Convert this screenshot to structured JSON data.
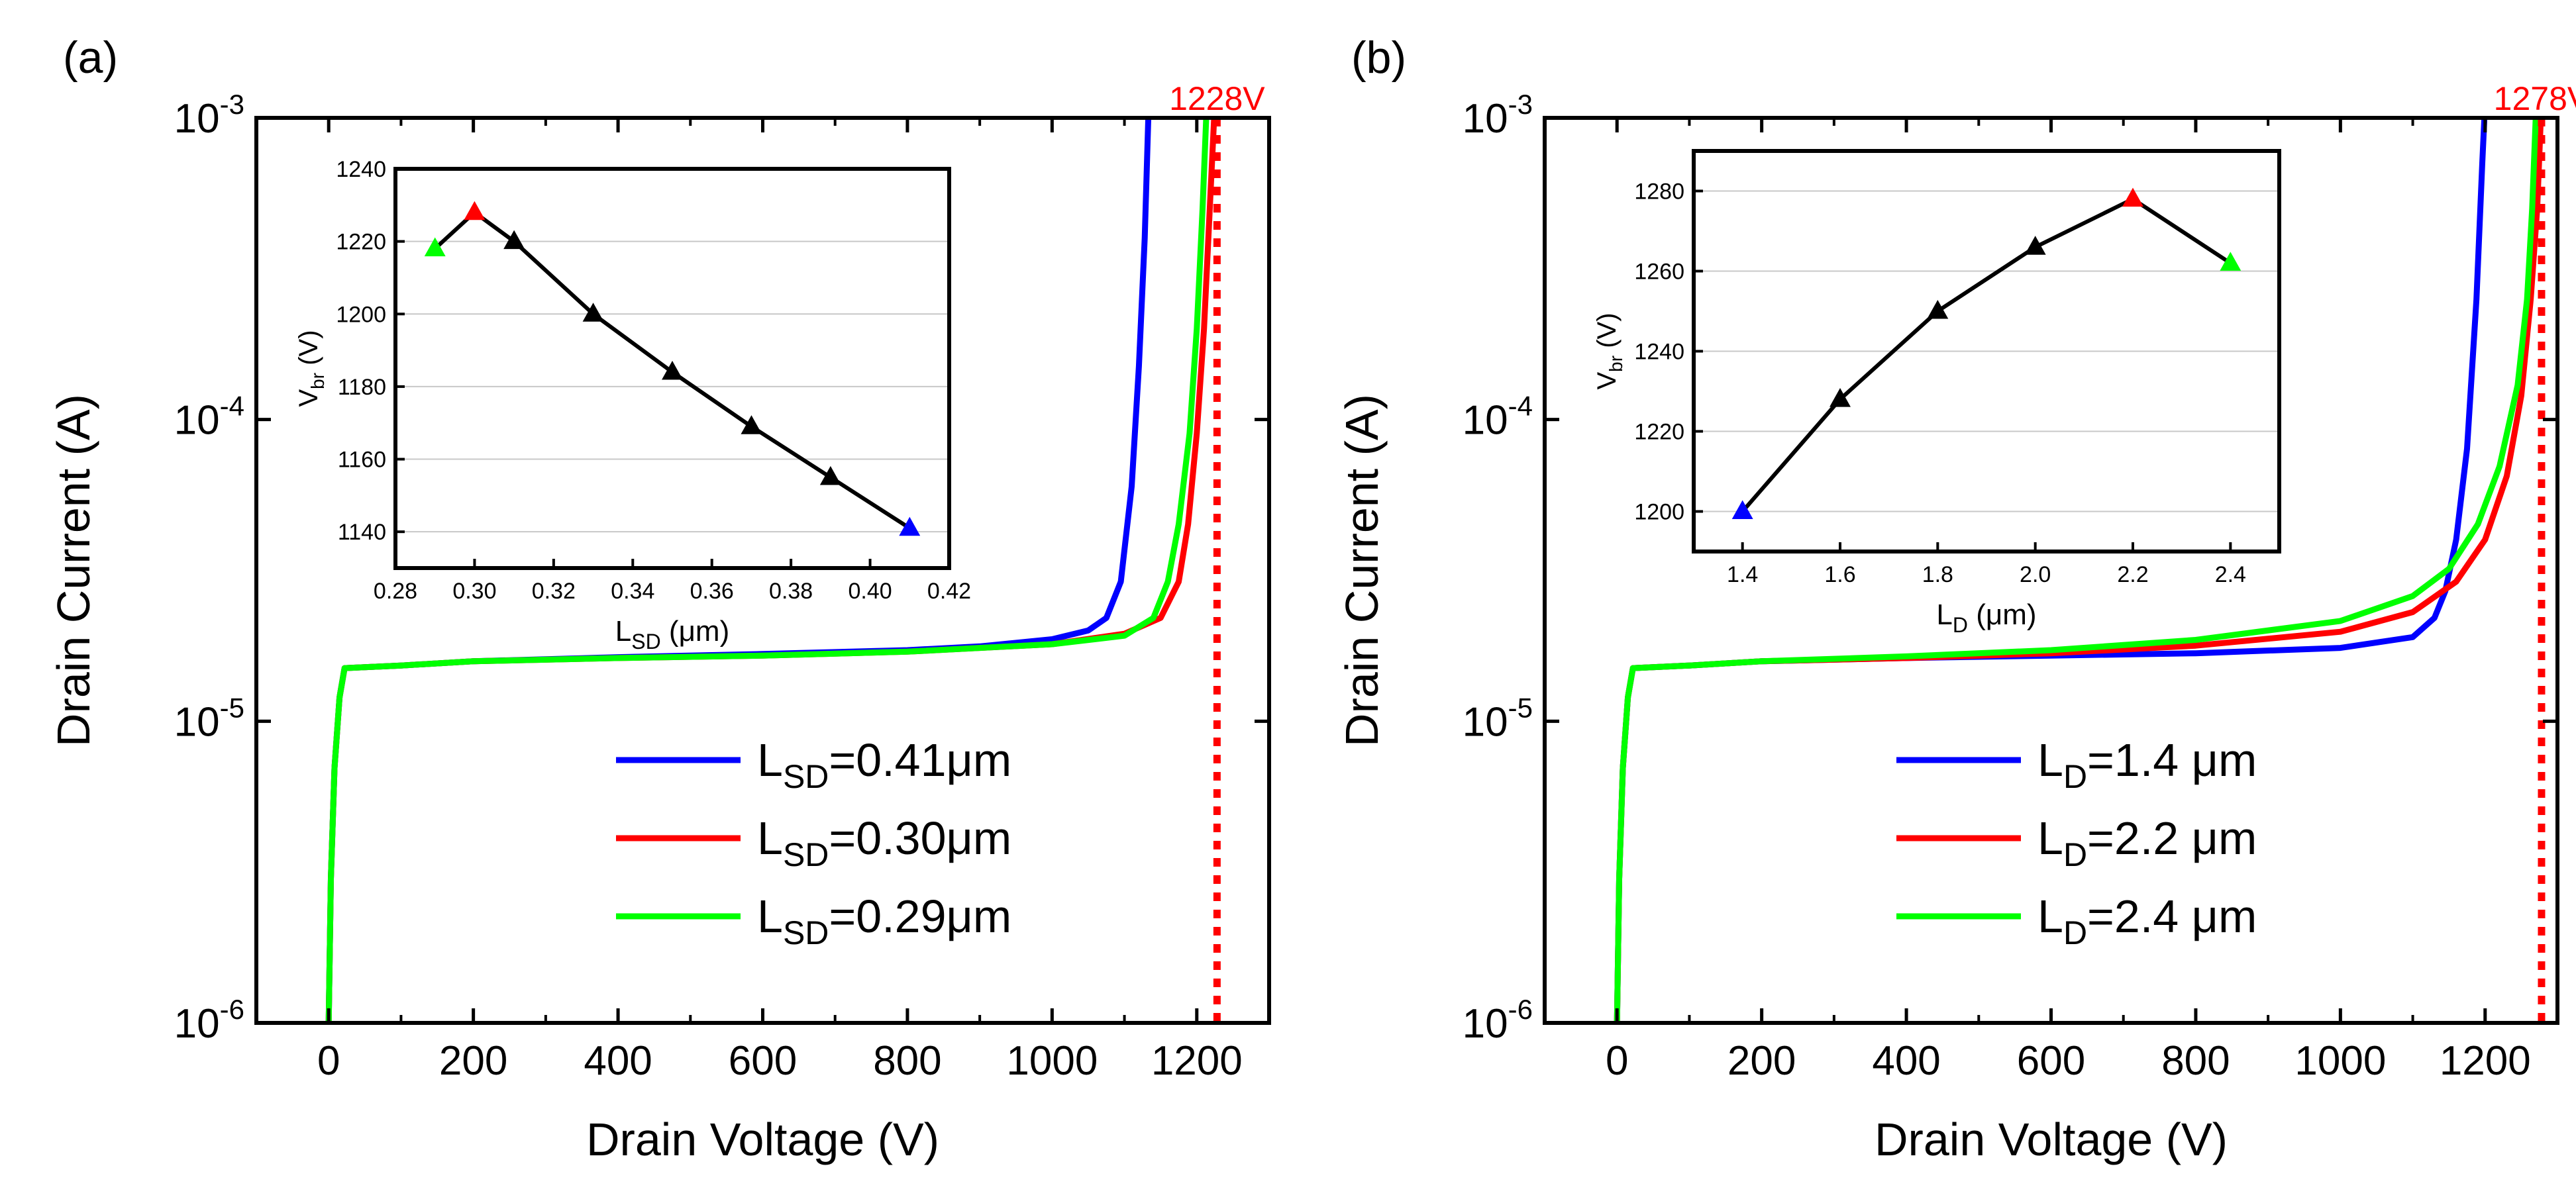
{
  "chart_data": [
    {
      "type": "line",
      "panel_label": "(a)",
      "xlabel": "Drain Voltage (V)",
      "ylabel": "Drain Current (A)",
      "y_scale": "log",
      "xlim": [
        -100,
        1300
      ],
      "ylim": [
        1e-06,
        0.001
      ],
      "x_ticks": [
        "0",
        "200",
        "400",
        "600",
        "800",
        "1000",
        "1200"
      ],
      "y_ticks": [
        {
          "base": "10",
          "exp": "-6"
        },
        {
          "base": "10",
          "exp": "-5"
        },
        {
          "base": "10",
          "exp": "-4"
        },
        {
          "base": "10",
          "exp": "-3"
        }
      ],
      "breakdown_line": {
        "x": 1228,
        "label": "1228V",
        "color": "#ff0000"
      },
      "legend": [
        {
          "main": "L",
          "sub": "SD",
          "rest": "=0.41μm",
          "color": "#0000ff"
        },
        {
          "main": "L",
          "sub": "SD",
          "rest": "=0.30μm",
          "color": "#ff0000"
        },
        {
          "main": "L",
          "sub": "SD",
          "rest": "=0.29μm",
          "color": "#00ff00"
        }
      ],
      "series": [
        {
          "color": "#0000ff",
          "points": [
            [
              0,
              1e-06
            ],
            [
              3,
              3e-06
            ],
            [
              8,
              7e-06
            ],
            [
              15,
              1.2e-05
            ],
            [
              22,
              1.5e-05
            ],
            [
              100,
              1.53e-05
            ],
            [
              200,
              1.58e-05
            ],
            [
              400,
              1.63e-05
            ],
            [
              600,
              1.67e-05
            ],
            [
              800,
              1.72e-05
            ],
            [
              900,
              1.77e-05
            ],
            [
              1000,
              1.87e-05
            ],
            [
              1050,
              2e-05
            ],
            [
              1075,
              2.2e-05
            ],
            [
              1095,
              2.9e-05
            ],
            [
              1110,
              6e-05
            ],
            [
              1120,
              0.00015
            ],
            [
              1128,
              0.0004
            ],
            [
              1133,
              0.001
            ]
          ]
        },
        {
          "color": "#ff0000",
          "points": [
            [
              0,
              1e-06
            ],
            [
              3,
              3e-06
            ],
            [
              8,
              7e-06
            ],
            [
              15,
              1.2e-05
            ],
            [
              22,
              1.5e-05
            ],
            [
              100,
              1.53e-05
            ],
            [
              200,
              1.58e-05
            ],
            [
              400,
              1.62e-05
            ],
            [
              600,
              1.65e-05
            ],
            [
              800,
              1.7e-05
            ],
            [
              1000,
              1.8e-05
            ],
            [
              1100,
              1.95e-05
            ],
            [
              1150,
              2.2e-05
            ],
            [
              1175,
              2.9e-05
            ],
            [
              1188,
              4.5e-05
            ],
            [
              1200,
              9e-05
            ],
            [
              1210,
              0.0002
            ],
            [
              1218,
              0.0005
            ],
            [
              1224,
              0.001
            ]
          ]
        },
        {
          "color": "#00ff00",
          "points": [
            [
              0,
              1e-06
            ],
            [
              3,
              3e-06
            ],
            [
              8,
              7e-06
            ],
            [
              15,
              1.2e-05
            ],
            [
              22,
              1.5e-05
            ],
            [
              100,
              1.53e-05
            ],
            [
              200,
              1.58e-05
            ],
            [
              400,
              1.62e-05
            ],
            [
              600,
              1.65e-05
            ],
            [
              800,
              1.7e-05
            ],
            [
              1000,
              1.8e-05
            ],
            [
              1100,
              1.92e-05
            ],
            [
              1140,
              2.2e-05
            ],
            [
              1160,
              2.9e-05
            ],
            [
              1175,
              4.5e-05
            ],
            [
              1190,
              9e-05
            ],
            [
              1200,
              0.0002
            ],
            [
              1208,
              0.0005
            ],
            [
              1213,
              0.001
            ]
          ]
        }
      ],
      "inset": {
        "xlabel": {
          "main": "L",
          "sub": "SD",
          "rest": " (μm)"
        },
        "ylabel": {
          "main": "V",
          "sub": "br",
          "rest": " (V)"
        },
        "xlim": [
          0.28,
          0.42
        ],
        "ylim": [
          1130,
          1240
        ],
        "x_ticks": [
          "0.28",
          "0.30",
          "0.32",
          "0.34",
          "0.36",
          "0.38",
          "0.40",
          "0.42"
        ],
        "y_ticks": [
          "1140",
          "1160",
          "1180",
          "1200",
          "1220",
          "1240"
        ],
        "points": [
          {
            "x": 0.29,
            "y": 1218,
            "color": "#00ff00"
          },
          {
            "x": 0.3,
            "y": 1228,
            "color": "#ff0000"
          },
          {
            "x": 0.31,
            "y": 1220,
            "color": "#000000"
          },
          {
            "x": 0.33,
            "y": 1200,
            "color": "#000000"
          },
          {
            "x": 0.35,
            "y": 1184,
            "color": "#000000"
          },
          {
            "x": 0.37,
            "y": 1169,
            "color": "#000000"
          },
          {
            "x": 0.39,
            "y": 1155,
            "color": "#000000"
          },
          {
            "x": 0.41,
            "y": 1141,
            "color": "#0000ff"
          }
        ]
      }
    },
    {
      "type": "line",
      "panel_label": "(b)",
      "xlabel": "Drain Voltage (V)",
      "ylabel": "Drain Current (A)",
      "y_scale": "log",
      "xlim": [
        -100,
        1300
      ],
      "ylim": [
        1e-06,
        0.001
      ],
      "x_ticks": [
        "0",
        "200",
        "400",
        "600",
        "800",
        "1000",
        "1200"
      ],
      "y_ticks": [
        {
          "base": "10",
          "exp": "-6"
        },
        {
          "base": "10",
          "exp": "-5"
        },
        {
          "base": "10",
          "exp": "-4"
        },
        {
          "base": "10",
          "exp": "-3"
        }
      ],
      "breakdown_line": {
        "x": 1278,
        "label": "1278V",
        "color": "#ff0000"
      },
      "legend": [
        {
          "main": "L",
          "sub": "D",
          "rest": "=1.4 μm",
          "color": "#0000ff"
        },
        {
          "main": "L",
          "sub": "D",
          "rest": "=2.2 μm",
          "color": "#ff0000"
        },
        {
          "main": "L",
          "sub": "D",
          "rest": "=2.4 μm",
          "color": "#00ff00"
        }
      ],
      "series": [
        {
          "color": "#0000ff",
          "points": [
            [
              0,
              1e-06
            ],
            [
              3,
              3e-06
            ],
            [
              8,
              7e-06
            ],
            [
              15,
              1.2e-05
            ],
            [
              22,
              1.5e-05
            ],
            [
              100,
              1.53e-05
            ],
            [
              200,
              1.58e-05
            ],
            [
              400,
              1.62e-05
            ],
            [
              600,
              1.65e-05
            ],
            [
              800,
              1.68e-05
            ],
            [
              1000,
              1.75e-05
            ],
            [
              1100,
              1.9e-05
            ],
            [
              1130,
              2.2e-05
            ],
            [
              1145,
              2.7e-05
            ],
            [
              1160,
              4e-05
            ],
            [
              1175,
              8e-05
            ],
            [
              1188,
              0.00025
            ],
            [
              1196,
              0.0007
            ],
            [
              1199,
              0.001
            ]
          ]
        },
        {
          "color": "#ff0000",
          "points": [
            [
              0,
              1e-06
            ],
            [
              3,
              3e-06
            ],
            [
              8,
              7e-06
            ],
            [
              15,
              1.2e-05
            ],
            [
              22,
              1.5e-05
            ],
            [
              100,
              1.53e-05
            ],
            [
              200,
              1.58e-05
            ],
            [
              400,
              1.62e-05
            ],
            [
              600,
              1.68e-05
            ],
            [
              800,
              1.78e-05
            ],
            [
              1000,
              1.98e-05
            ],
            [
              1100,
              2.3e-05
            ],
            [
              1160,
              2.9e-05
            ],
            [
              1200,
              4e-05
            ],
            [
              1230,
              6.5e-05
            ],
            [
              1250,
              0.00012
            ],
            [
              1263,
              0.00025
            ],
            [
              1272,
              0.0005
            ],
            [
              1277,
              0.001
            ]
          ]
        },
        {
          "color": "#00ff00",
          "points": [
            [
              0,
              1e-06
            ],
            [
              3,
              3e-06
            ],
            [
              8,
              7e-06
            ],
            [
              15,
              1.2e-05
            ],
            [
              22,
              1.5e-05
            ],
            [
              100,
              1.53e-05
            ],
            [
              200,
              1.58e-05
            ],
            [
              400,
              1.64e-05
            ],
            [
              600,
              1.72e-05
            ],
            [
              800,
              1.86e-05
            ],
            [
              1000,
              2.15e-05
            ],
            [
              1100,
              2.6e-05
            ],
            [
              1150,
              3.2e-05
            ],
            [
              1190,
              4.5e-05
            ],
            [
              1220,
              7e-05
            ],
            [
              1245,
              0.00013
            ],
            [
              1258,
              0.00025
            ],
            [
              1265,
              0.0005
            ],
            [
              1270,
              0.001
            ]
          ]
        }
      ],
      "inset": {
        "xlabel": {
          "main": "L",
          "sub": "D",
          "rest": " (μm)"
        },
        "ylabel": {
          "main": "V",
          "sub": "br",
          "rest": " (V)"
        },
        "xlim": [
          1.3,
          2.5
        ],
        "ylim": [
          1190,
          1290
        ],
        "x_ticks": [
          "1.4",
          "1.6",
          "1.8",
          "2.0",
          "2.2",
          "2.4"
        ],
        "y_ticks": [
          "1200",
          "1220",
          "1240",
          "1260",
          "1280"
        ],
        "points": [
          {
            "x": 1.4,
            "y": 1200,
            "color": "#0000ff"
          },
          {
            "x": 1.6,
            "y": 1228,
            "color": "#000000"
          },
          {
            "x": 1.8,
            "y": 1250,
            "color": "#000000"
          },
          {
            "x": 2.0,
            "y": 1266,
            "color": "#000000"
          },
          {
            "x": 2.2,
            "y": 1278,
            "color": "#ff0000"
          },
          {
            "x": 2.4,
            "y": 1262,
            "color": "#00ff00"
          }
        ]
      }
    }
  ]
}
